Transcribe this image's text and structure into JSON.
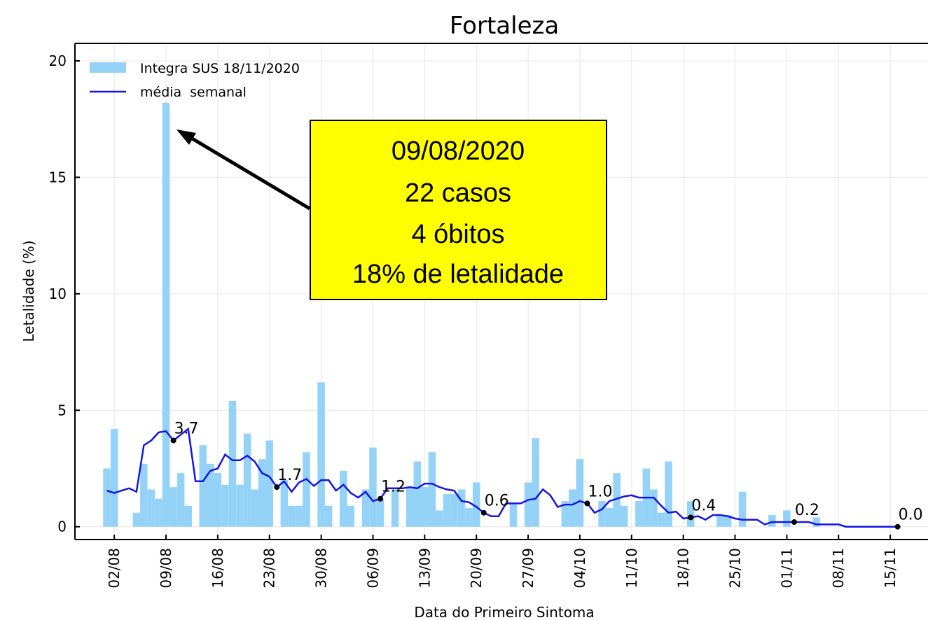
{
  "chart_data": {
    "type": "bar",
    "title": "Fortaleza",
    "xlabel": "Data do Primeiro Sintoma",
    "ylabel": "Letalidade (%)",
    "categories": [
      "01/08",
      "02/08",
      "03/08",
      "04/08",
      "05/08",
      "06/08",
      "07/08",
      "08/08",
      "09/08",
      "10/08",
      "11/08",
      "12/08",
      "13/08",
      "14/08",
      "15/08",
      "16/08",
      "17/08",
      "18/08",
      "19/08",
      "20/08",
      "21/08",
      "22/08",
      "23/08",
      "24/08",
      "25/08",
      "26/08",
      "27/08",
      "28/08",
      "29/08",
      "30/08",
      "31/08",
      "01/09",
      "02/09",
      "03/09",
      "04/09",
      "05/09",
      "06/09",
      "07/09",
      "08/09",
      "09/09",
      "10/09",
      "11/09",
      "12/09",
      "13/09",
      "14/09",
      "15/09",
      "16/09",
      "17/09",
      "18/09",
      "19/09",
      "20/09",
      "21/09",
      "22/09",
      "23/09",
      "24/09",
      "25/09",
      "26/09",
      "27/09",
      "28/09",
      "29/09",
      "30/09",
      "01/10",
      "02/10",
      "03/10",
      "04/10",
      "05/10",
      "06/10",
      "07/10",
      "08/10",
      "09/10",
      "10/10",
      "11/10",
      "12/10",
      "13/10",
      "14/10",
      "15/10",
      "16/10",
      "17/10",
      "18/10",
      "19/10",
      "20/10",
      "21/10",
      "22/10",
      "23/10",
      "24/10",
      "25/10",
      "26/10",
      "27/10",
      "28/10",
      "29/10",
      "30/10",
      "31/10",
      "01/11",
      "02/11",
      "03/11",
      "04/11",
      "05/11",
      "06/11",
      "07/11",
      "08/11",
      "09/11",
      "10/11",
      "11/11",
      "12/11",
      "13/11",
      "14/11",
      "15/11",
      "16/11"
    ],
    "series": [
      {
        "name": "Integra SUS 18/11/2020",
        "type": "bar",
        "color": "#94d2f8",
        "values": [
          2.5,
          4.2,
          0,
          0,
          0.6,
          2.7,
          1.6,
          1.2,
          18.2,
          1.7,
          2.3,
          0.9,
          0,
          3.5,
          2.7,
          2.3,
          1.8,
          5.4,
          1.8,
          4.0,
          1.6,
          2.9,
          3.7,
          0,
          2.0,
          0.9,
          0.9,
          3.2,
          0,
          6.2,
          0.9,
          0,
          2.4,
          0.9,
          0,
          1.6,
          3.4,
          1.2,
          0,
          1.6,
          0,
          1.7,
          2.8,
          1.7,
          3.2,
          0.7,
          1.4,
          1.4,
          1.6,
          0.8,
          1.9,
          0,
          0,
          0,
          0,
          1.0,
          0,
          1.9,
          3.8,
          0,
          0,
          0,
          1.1,
          1.6,
          2.9,
          0,
          0,
          1.1,
          0.8,
          2.3,
          0.9,
          0,
          1.1,
          2.5,
          1.6,
          0.6,
          2.8,
          0,
          0,
          1.1,
          0,
          0,
          0,
          0.5,
          0.5,
          0,
          1.5,
          0,
          0,
          0,
          0.5,
          0,
          0.7,
          0,
          0,
          0,
          0.4,
          0,
          0,
          0,
          0,
          0,
          0,
          0,
          0,
          0,
          0,
          0
        ]
      },
      {
        "name": "média  semanal",
        "type": "line",
        "color": "#1414e6",
        "values": [
          1.55,
          1.45,
          1.55,
          1.65,
          1.5,
          3.5,
          3.7,
          4.05,
          4.1,
          3.7,
          3.95,
          4.2,
          1.95,
          1.95,
          2.4,
          2.5,
          3.1,
          2.85,
          2.85,
          3.05,
          2.8,
          2.3,
          2.15,
          1.7,
          1.95,
          1.5,
          1.9,
          2.05,
          1.75,
          2.0,
          2.0,
          1.55,
          1.8,
          1.45,
          1.25,
          1.5,
          1.1,
          1.2,
          1.65,
          1.65,
          1.65,
          1.7,
          1.65,
          1.85,
          1.85,
          1.7,
          1.6,
          1.55,
          1.1,
          1.05,
          0.85,
          0.6,
          0.45,
          0.45,
          1.0,
          1.0,
          1.0,
          1.15,
          1.2,
          1.6,
          1.35,
          0.85,
          0.95,
          0.95,
          1.1,
          1.0,
          0.6,
          0.75,
          1.1,
          1.2,
          1.3,
          1.35,
          1.25,
          1.25,
          1.25,
          0.9,
          0.6,
          0.65,
          0.35,
          0.4,
          0.45,
          0.3,
          0.5,
          0.5,
          0.45,
          0.35,
          0.3,
          0.3,
          0.3,
          0.1,
          0.2,
          0.2,
          0.2,
          0.2,
          0.2,
          0.2,
          0.1,
          0.1,
          0.1,
          0.1,
          0.0,
          0,
          0,
          0,
          0,
          0,
          0,
          0
        ]
      }
    ],
    "markers": {
      "x": [
        "10/08",
        "24/08",
        "07/09",
        "21/09",
        "05/10",
        "19/10",
        "02/11",
        "16/11"
      ],
      "values": [
        3.7,
        1.7,
        1.2,
        0.6,
        1.0,
        0.4,
        0.2,
        0.0
      ],
      "value_labels": [
        "3.7",
        "1.7",
        "1.2",
        "0.6",
        "1.0",
        "0.4",
        "0.2",
        "0.0"
      ],
      "color": "#000000"
    },
    "annotation": [
      "09/08/2020",
      "22 casos",
      "4 óbitos",
      "18% de letalidade"
    ],
    "xticks": [
      "02/08",
      "09/08",
      "16/08",
      "23/08",
      "30/08",
      "06/09",
      "13/09",
      "20/09",
      "27/09",
      "04/10",
      "11/10",
      "18/10",
      "25/10",
      "01/11",
      "08/11",
      "15/11"
    ],
    "ylim": [
      -0.55,
      20.75
    ],
    "yticks": [
      0,
      5,
      10,
      15,
      20
    ],
    "grid": true,
    "legend": "upper left"
  }
}
